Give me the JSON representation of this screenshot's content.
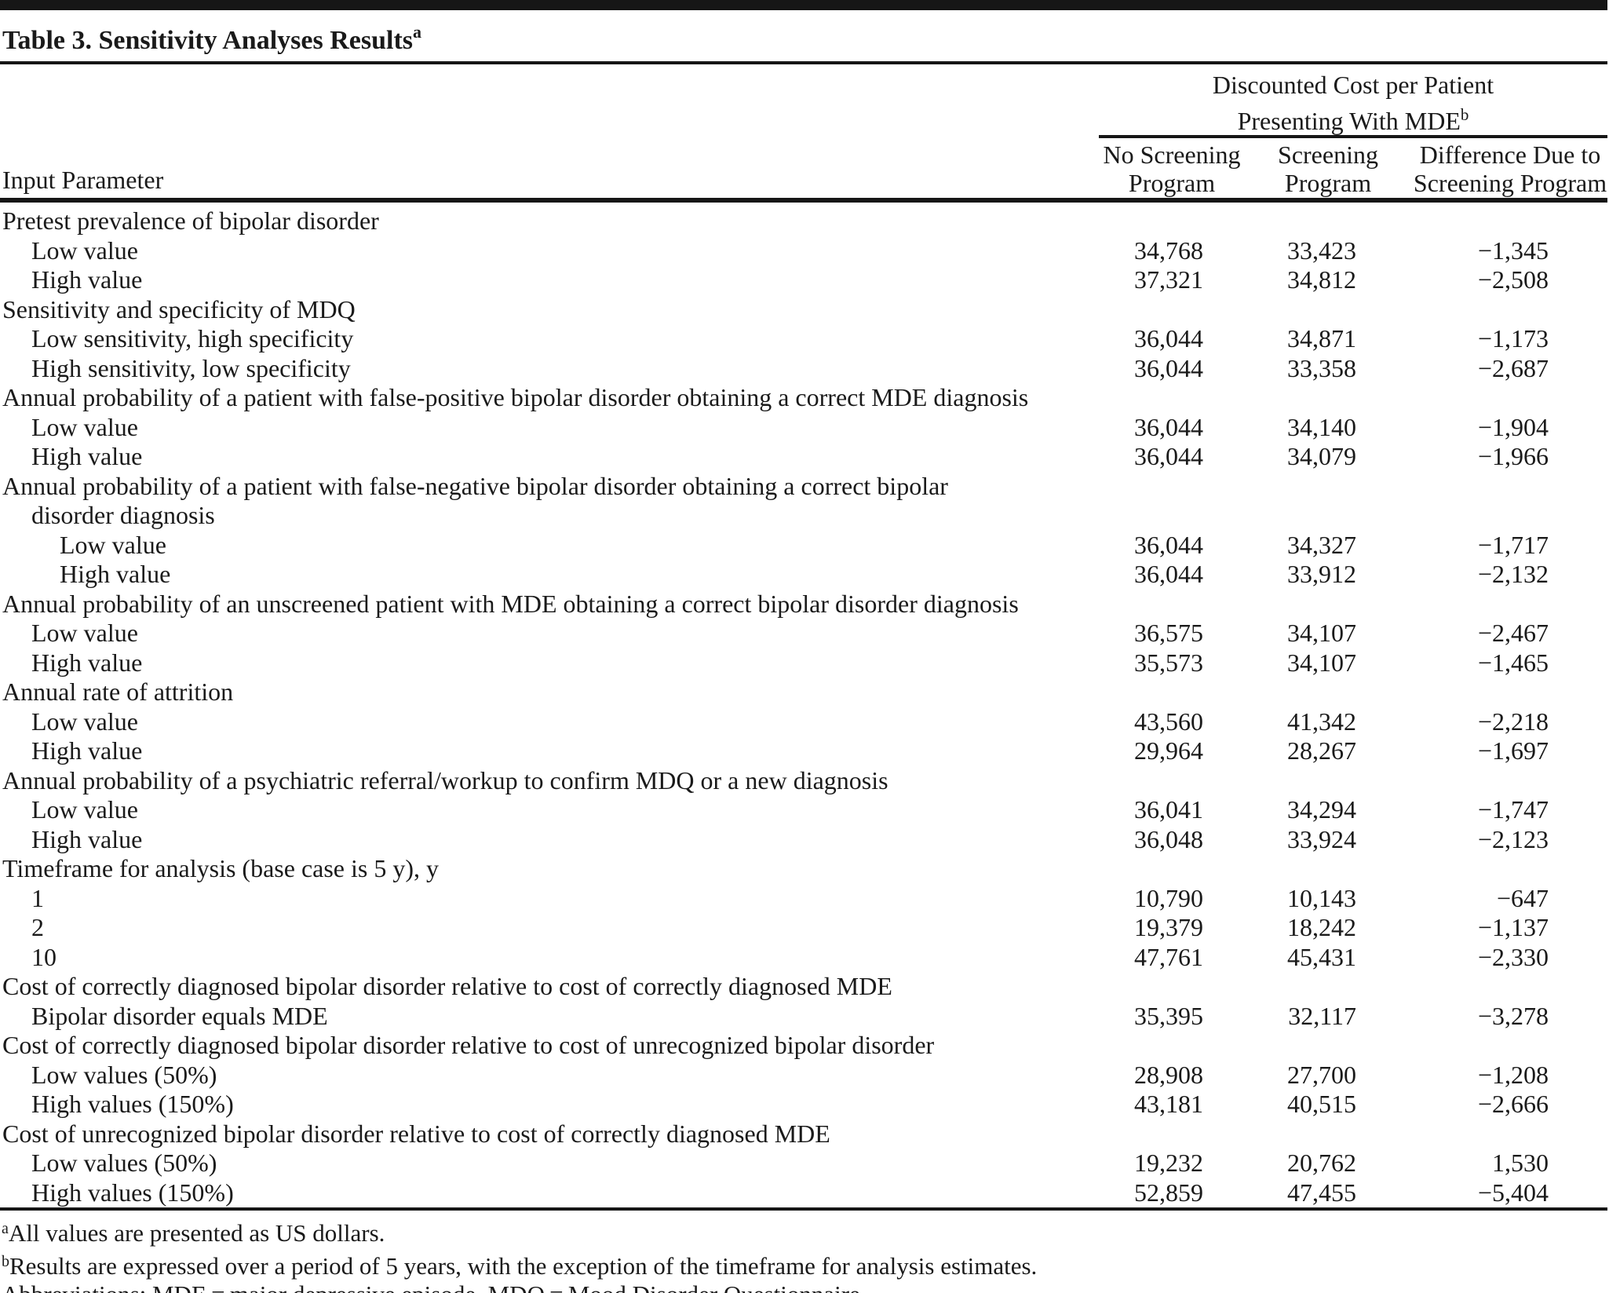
{
  "colors": {
    "text": "#1a1a1a",
    "rule": "#161616",
    "background": "#ffffff"
  },
  "title": {
    "text": "Table 3. Sensitivity Analyses Results",
    "superscript": "a"
  },
  "header": {
    "input_parameter_label": "Input Parameter",
    "spanner": {
      "line1": "Discounted Cost per Patient",
      "line2": "Presenting With MDE",
      "superscript": "b"
    },
    "columns": [
      {
        "line1": "No Screening",
        "line2": "Program"
      },
      {
        "line1": "Screening",
        "line2": "Program"
      },
      {
        "line1": "Difference Due to",
        "line2": "Screening Program"
      }
    ]
  },
  "rows": [
    {
      "label": "Pretest prevalence of bipolar disorder",
      "indent": 0,
      "values": null
    },
    {
      "label": "Low value",
      "indent": 1,
      "values": [
        "34,768",
        "33,423",
        "−1,345"
      ]
    },
    {
      "label": "High value",
      "indent": 1,
      "values": [
        "37,321",
        "34,812",
        "−2,508"
      ]
    },
    {
      "label": "Sensitivity and specificity of MDQ",
      "indent": 0,
      "values": null
    },
    {
      "label": "Low sensitivity, high specificity",
      "indent": 1,
      "values": [
        "36,044",
        "34,871",
        "−1,173"
      ]
    },
    {
      "label": "High sensitivity, low specificity",
      "indent": 1,
      "values": [
        "36,044",
        "33,358",
        "−2,687"
      ]
    },
    {
      "label": "Annual probability of a patient with false-positive bipolar disorder obtaining a correct MDE diagnosis",
      "indent": 0,
      "values": null
    },
    {
      "label": "Low value",
      "indent": 1,
      "values": [
        "36,044",
        "34,140",
        "−1,904"
      ]
    },
    {
      "label": "High value",
      "indent": 1,
      "values": [
        "36,044",
        "34,079",
        "−1,966"
      ]
    },
    {
      "label": "Annual probability of a patient with false-negative bipolar disorder obtaining a correct bipolar",
      "label2": "disorder diagnosis",
      "indent": 0,
      "values": null
    },
    {
      "label": "Low value",
      "indent": 2,
      "values": [
        "36,044",
        "34,327",
        "−1,717"
      ]
    },
    {
      "label": "High value",
      "indent": 2,
      "values": [
        "36,044",
        "33,912",
        "−2,132"
      ]
    },
    {
      "label": "Annual probability of an unscreened patient with MDE obtaining a correct bipolar disorder diagnosis",
      "indent": 0,
      "values": null
    },
    {
      "label": "Low value",
      "indent": 1,
      "values": [
        "36,575",
        "34,107",
        "−2,467"
      ]
    },
    {
      "label": "High value",
      "indent": 1,
      "values": [
        "35,573",
        "34,107",
        "−1,465"
      ]
    },
    {
      "label": "Annual rate of attrition",
      "indent": 0,
      "values": null
    },
    {
      "label": "Low value",
      "indent": 1,
      "values": [
        "43,560",
        "41,342",
        "−2,218"
      ]
    },
    {
      "label": "High value",
      "indent": 1,
      "values": [
        "29,964",
        "28,267",
        "−1,697"
      ]
    },
    {
      "label": "Annual probability of a psychiatric referral/workup to confirm MDQ or a new diagnosis",
      "indent": 0,
      "values": null
    },
    {
      "label": "Low value",
      "indent": 1,
      "values": [
        "36,041",
        "34,294",
        "−1,747"
      ]
    },
    {
      "label": "High value",
      "indent": 1,
      "values": [
        "36,048",
        "33,924",
        "−2,123"
      ]
    },
    {
      "label": "Timeframe for analysis (base case is 5 y), y",
      "indent": 0,
      "values": null
    },
    {
      "label": "1",
      "indent": 1,
      "values": [
        "10,790",
        "10,143",
        "−647"
      ]
    },
    {
      "label": "2",
      "indent": 1,
      "values": [
        "19,379",
        "18,242",
        "−1,137"
      ]
    },
    {
      "label": "10",
      "indent": 1,
      "values": [
        "47,761",
        "45,431",
        "−2,330"
      ]
    },
    {
      "label": "Cost of correctly diagnosed bipolar disorder relative to cost of correctly diagnosed MDE",
      "indent": 0,
      "values": null
    },
    {
      "label": "Bipolar disorder equals MDE",
      "indent": 1,
      "values": [
        "35,395",
        "32,117",
        "−3,278"
      ]
    },
    {
      "label": "Cost of correctly diagnosed bipolar disorder relative to cost of unrecognized bipolar disorder",
      "indent": 0,
      "values": null
    },
    {
      "label": "Low values (50%)",
      "indent": 1,
      "values": [
        "28,908",
        "27,700",
        "−1,208"
      ]
    },
    {
      "label": "High values (150%)",
      "indent": 1,
      "values": [
        "43,181",
        "40,515",
        "−2,666"
      ]
    },
    {
      "label": "Cost of unrecognized bipolar disorder relative to cost of correctly diagnosed MDE",
      "indent": 0,
      "values": null
    },
    {
      "label": "Low values (50%)",
      "indent": 1,
      "values": [
        "19,232",
        "20,762",
        "1,530"
      ]
    },
    {
      "label": "High values (150%)",
      "indent": 1,
      "values": [
        "52,859",
        "47,455",
        "−5,404"
      ]
    }
  ],
  "footnotes": [
    {
      "superscript": "a",
      "text": "All values are presented as US dollars."
    },
    {
      "superscript": "b",
      "text": "Results are expressed over a period of 5 years, with the exception of the timeframe for analysis estimates."
    },
    {
      "superscript": "",
      "text": "Abbreviations: MDE = major depressive episode, MDQ = Mood Disorder Questionnaire."
    }
  ]
}
